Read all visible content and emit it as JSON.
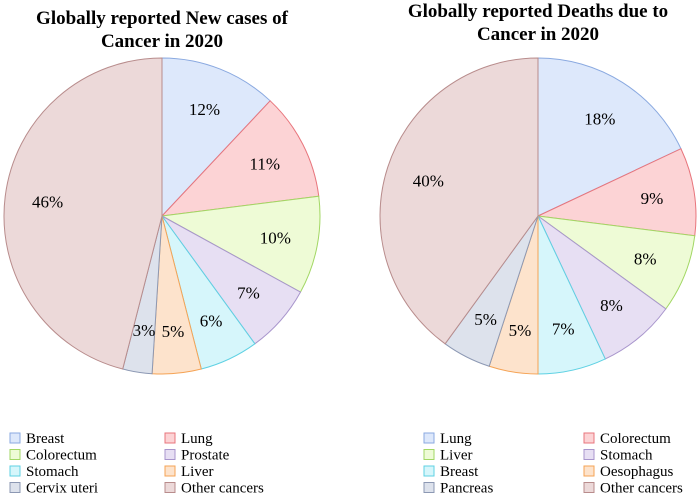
{
  "chart_data": [
    {
      "type": "pie",
      "title_lines": [
        "Globally reported  New cases of",
        "Cancer in 2020"
      ],
      "slices": [
        {
          "label": "Breast",
          "value": 12,
          "text": "12%"
        },
        {
          "label": "Lung",
          "value": 11,
          "text": "11%"
        },
        {
          "label": "Colorectum",
          "value": 10,
          "text": "10%"
        },
        {
          "label": "Prostate",
          "value": 7,
          "text": "7%"
        },
        {
          "label": "Stomach",
          "value": 6,
          "text": "6%"
        },
        {
          "label": "Liver",
          "value": 5,
          "text": "5%"
        },
        {
          "label": "Cervix uteri",
          "value": 3,
          "text": "3%"
        },
        {
          "label": "Other cancers",
          "value": 46,
          "text": "46%"
        }
      ]
    },
    {
      "type": "pie",
      "title_lines": [
        "Globally reported  Deaths due to",
        "Cancer in 2020"
      ],
      "slices": [
        {
          "label": "Lung",
          "value": 18,
          "text": "18%"
        },
        {
          "label": "Colorectum",
          "value": 9,
          "text": "9%"
        },
        {
          "label": "Liver",
          "value": 8,
          "text": "8%"
        },
        {
          "label": "Stomach",
          "value": 8,
          "text": "8%"
        },
        {
          "label": "Breast",
          "value": 7,
          "text": "7%"
        },
        {
          "label": "Oesophagus",
          "value": 5,
          "text": "5%"
        },
        {
          "label": "Pancreas",
          "value": 5,
          "text": "5%"
        },
        {
          "label": "Other cancers",
          "value": 40,
          "text": "40%"
        }
      ]
    }
  ],
  "colors": {
    "fills": [
      "#dde8fb",
      "#fcd3d5",
      "#eefbd6",
      "#e7dff3",
      "#d6f6fb",
      "#fde3cc",
      "#dde2ec",
      "#ecd9d9"
    ],
    "strokes": [
      "#8aa9e0",
      "#e8757c",
      "#a2d764",
      "#a895cc",
      "#5fd1e3",
      "#f5a355",
      "#8c98b3",
      "#b88c8c"
    ]
  }
}
